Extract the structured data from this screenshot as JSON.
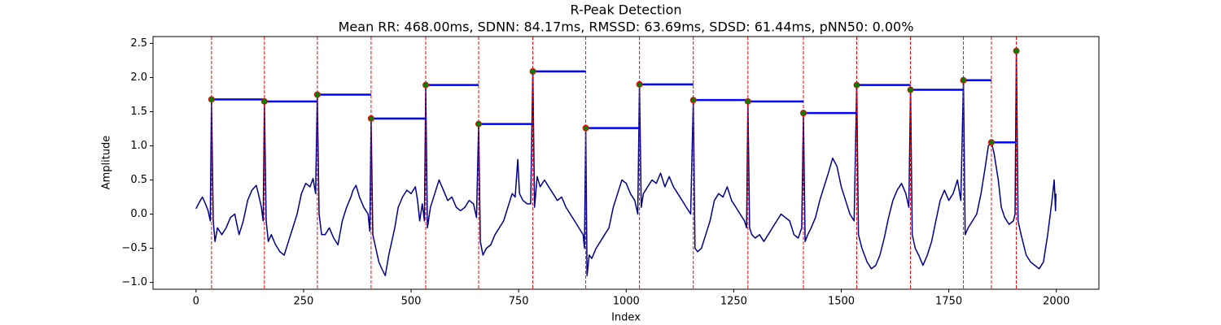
{
  "chart_data": {
    "type": "line",
    "title": "R-Peak Detection",
    "subtitle": "Mean RR: 468.00ms, SDNN: 84.17ms, RMSSD: 63.69ms, SDSD: 61.44ms, pNN50: 0.00%",
    "xlabel": "Index",
    "ylabel": "Amplitude",
    "xlim": [
      -99.95,
      2098.95
    ],
    "ylim": [
      -1.1,
      2.6
    ],
    "xticks": [
      0,
      250,
      500,
      750,
      1000,
      1250,
      1500,
      1750,
      2000
    ],
    "yticks": [
      {
        "value": -1,
        "label": "−1.0"
      },
      {
        "value": -0.5,
        "label": "−0.5"
      },
      {
        "value": 0,
        "label": "0.0"
      },
      0.5,
      {
        "value": 1,
        "label": "1.0"
      },
      1.5,
      {
        "value": 2,
        "label": "2.0"
      },
      2.5
    ],
    "signal": {
      "color": "#00008b",
      "x": [
        0,
        10,
        15,
        22,
        28,
        33,
        36,
        40,
        44,
        50,
        60,
        70,
        80,
        90,
        100,
        110,
        120,
        130,
        140,
        145,
        152,
        156,
        159,
        163,
        168,
        175,
        185,
        195,
        205,
        215,
        225,
        235,
        245,
        255,
        265,
        272,
        278,
        282,
        286,
        292,
        300,
        310,
        320,
        330,
        340,
        350,
        360,
        365,
        372,
        380,
        390,
        400,
        404,
        407,
        411,
        418,
        425,
        432,
        440,
        448,
        455,
        462,
        470,
        480,
        490,
        500,
        510,
        515,
        520,
        526,
        531,
        534,
        538,
        545,
        555,
        565,
        575,
        585,
        595,
        605,
        615,
        625,
        635,
        645,
        652,
        657,
        661,
        667,
        675,
        685,
        695,
        705,
        715,
        725,
        735,
        742,
        748,
        752,
        760,
        770,
        778,
        783,
        787,
        793,
        800,
        810,
        820,
        830,
        840,
        850,
        860,
        870,
        880,
        890,
        900,
        903,
        906,
        909,
        914,
        920,
        930,
        940,
        950,
        960,
        970,
        980,
        990,
        1000,
        1010,
        1020,
        1027,
        1031,
        1035,
        1040,
        1050,
        1060,
        1070,
        1080,
        1090,
        1100,
        1110,
        1120,
        1130,
        1140,
        1150,
        1156,
        1160,
        1166,
        1175,
        1185,
        1195,
        1205,
        1215,
        1225,
        1235,
        1245,
        1255,
        1265,
        1275,
        1280,
        1283,
        1287,
        1292,
        1300,
        1310,
        1320,
        1330,
        1340,
        1350,
        1360,
        1370,
        1380,
        1390,
        1400,
        1408,
        1412,
        1416,
        1422,
        1430,
        1440,
        1450,
        1460,
        1470,
        1480,
        1490,
        1500,
        1510,
        1520,
        1530,
        1536,
        1540,
        1548,
        1560,
        1570,
        1580,
        1590,
        1600,
        1610,
        1620,
        1630,
        1640,
        1650,
        1657,
        1661,
        1665,
        1672,
        1680,
        1690,
        1700,
        1710,
        1720,
        1730,
        1740,
        1750,
        1760,
        1770,
        1778,
        1784,
        1788,
        1795,
        1805,
        1815,
        1825,
        1835,
        1842,
        1849,
        1855,
        1865,
        1872,
        1880,
        1890,
        1900,
        1904,
        1907,
        1911,
        1918,
        1930,
        1940,
        1950,
        1960,
        1970,
        1980,
        1990,
        1995,
        1998,
        1999
      ],
      "values": [
        0.08,
        0.2,
        0.25,
        0.15,
        0.05,
        -0.1,
        1.68,
        -0.1,
        -0.4,
        -0.2,
        -0.3,
        -0.2,
        -0.05,
        0.0,
        -0.3,
        -0.1,
        0.2,
        0.35,
        0.42,
        0.3,
        0.1,
        -0.1,
        1.65,
        -0.1,
        -0.4,
        -0.3,
        -0.45,
        -0.55,
        -0.6,
        -0.4,
        -0.2,
        0.0,
        0.3,
        0.45,
        0.4,
        0.52,
        0.3,
        1.75,
        0.0,
        -0.3,
        -0.3,
        -0.2,
        -0.35,
        -0.45,
        -0.1,
        0.1,
        0.25,
        0.35,
        0.42,
        0.25,
        0.1,
        0.0,
        -0.25,
        1.4,
        -0.3,
        -0.5,
        -0.7,
        -0.8,
        -0.9,
        -0.6,
        -0.4,
        -0.2,
        0.1,
        0.25,
        0.35,
        0.3,
        0.4,
        0.2,
        -0.1,
        0.15,
        -0.1,
        1.89,
        -0.2,
        0.1,
        0.3,
        0.5,
        0.35,
        0.2,
        0.25,
        0.1,
        0.05,
        0.1,
        0.2,
        0.15,
        -0.05,
        1.32,
        -0.4,
        -0.6,
        -0.5,
        -0.45,
        -0.3,
        -0.2,
        -0.1,
        0.1,
        0.3,
        0.25,
        0.8,
        0.3,
        0.2,
        0.15,
        0.15,
        2.09,
        0.1,
        0.55,
        0.4,
        0.5,
        0.4,
        0.3,
        0.2,
        0.25,
        0.1,
        0.0,
        -0.1,
        -0.2,
        -0.3,
        -0.5,
        1.26,
        -0.9,
        -0.6,
        -0.65,
        -0.5,
        -0.4,
        -0.3,
        -0.2,
        0.1,
        0.3,
        0.5,
        0.45,
        0.3,
        0.2,
        0.0,
        1.9,
        0.1,
        0.3,
        0.4,
        0.5,
        0.45,
        0.6,
        0.4,
        0.55,
        0.4,
        0.3,
        0.2,
        0.1,
        0.0,
        1.67,
        -0.5,
        -0.55,
        -0.5,
        -0.3,
        -0.1,
        0.2,
        0.3,
        0.25,
        0.4,
        0.2,
        0.1,
        0.0,
        -0.1,
        -0.2,
        1.65,
        -0.2,
        -0.3,
        -0.35,
        -0.3,
        -0.4,
        -0.3,
        -0.2,
        -0.1,
        0.0,
        -0.05,
        -0.1,
        -0.3,
        -0.35,
        -0.2,
        1.48,
        -0.4,
        -0.3,
        -0.2,
        -0.05,
        0.2,
        0.4,
        0.6,
        0.82,
        0.7,
        0.4,
        0.2,
        0.0,
        -0.1,
        1.89,
        -0.3,
        -0.5,
        -0.7,
        -0.8,
        -0.75,
        -0.6,
        -0.35,
        -0.05,
        0.2,
        0.35,
        0.45,
        0.3,
        0.1,
        1.82,
        -0.3,
        -0.5,
        -0.6,
        -0.75,
        -0.6,
        -0.4,
        -0.1,
        0.2,
        0.35,
        0.2,
        0.3,
        0.5,
        0.2,
        1.96,
        -0.3,
        -0.2,
        -0.1,
        0.0,
        0.3,
        0.7,
        1.0,
        1.05,
        0.9,
        0.5,
        0.1,
        -0.05,
        -0.15,
        -0.1,
        0.0,
        2.39,
        -0.1,
        -0.3,
        -0.6,
        -0.7,
        -0.75,
        -0.8,
        -0.7,
        -0.3,
        0.2,
        0.5,
        0.05,
        0.3
      ]
    },
    "peaks": {
      "color": "#008000",
      "edge_color": "#ff0000",
      "line_color": "#ff0000",
      "interval_color": "#0000ff",
      "x": [
        36,
        159,
        282,
        407,
        534,
        657,
        783,
        906,
        1031,
        1156,
        1283,
        1412,
        1536,
        1661,
        1784,
        1849,
        1907
      ],
      "values": [
        1.68,
        1.65,
        1.75,
        1.4,
        1.89,
        1.32,
        2.09,
        1.26,
        1.9,
        1.67,
        1.65,
        1.48,
        1.89,
        1.82,
        1.96,
        1.05,
        2.39
      ]
    }
  }
}
